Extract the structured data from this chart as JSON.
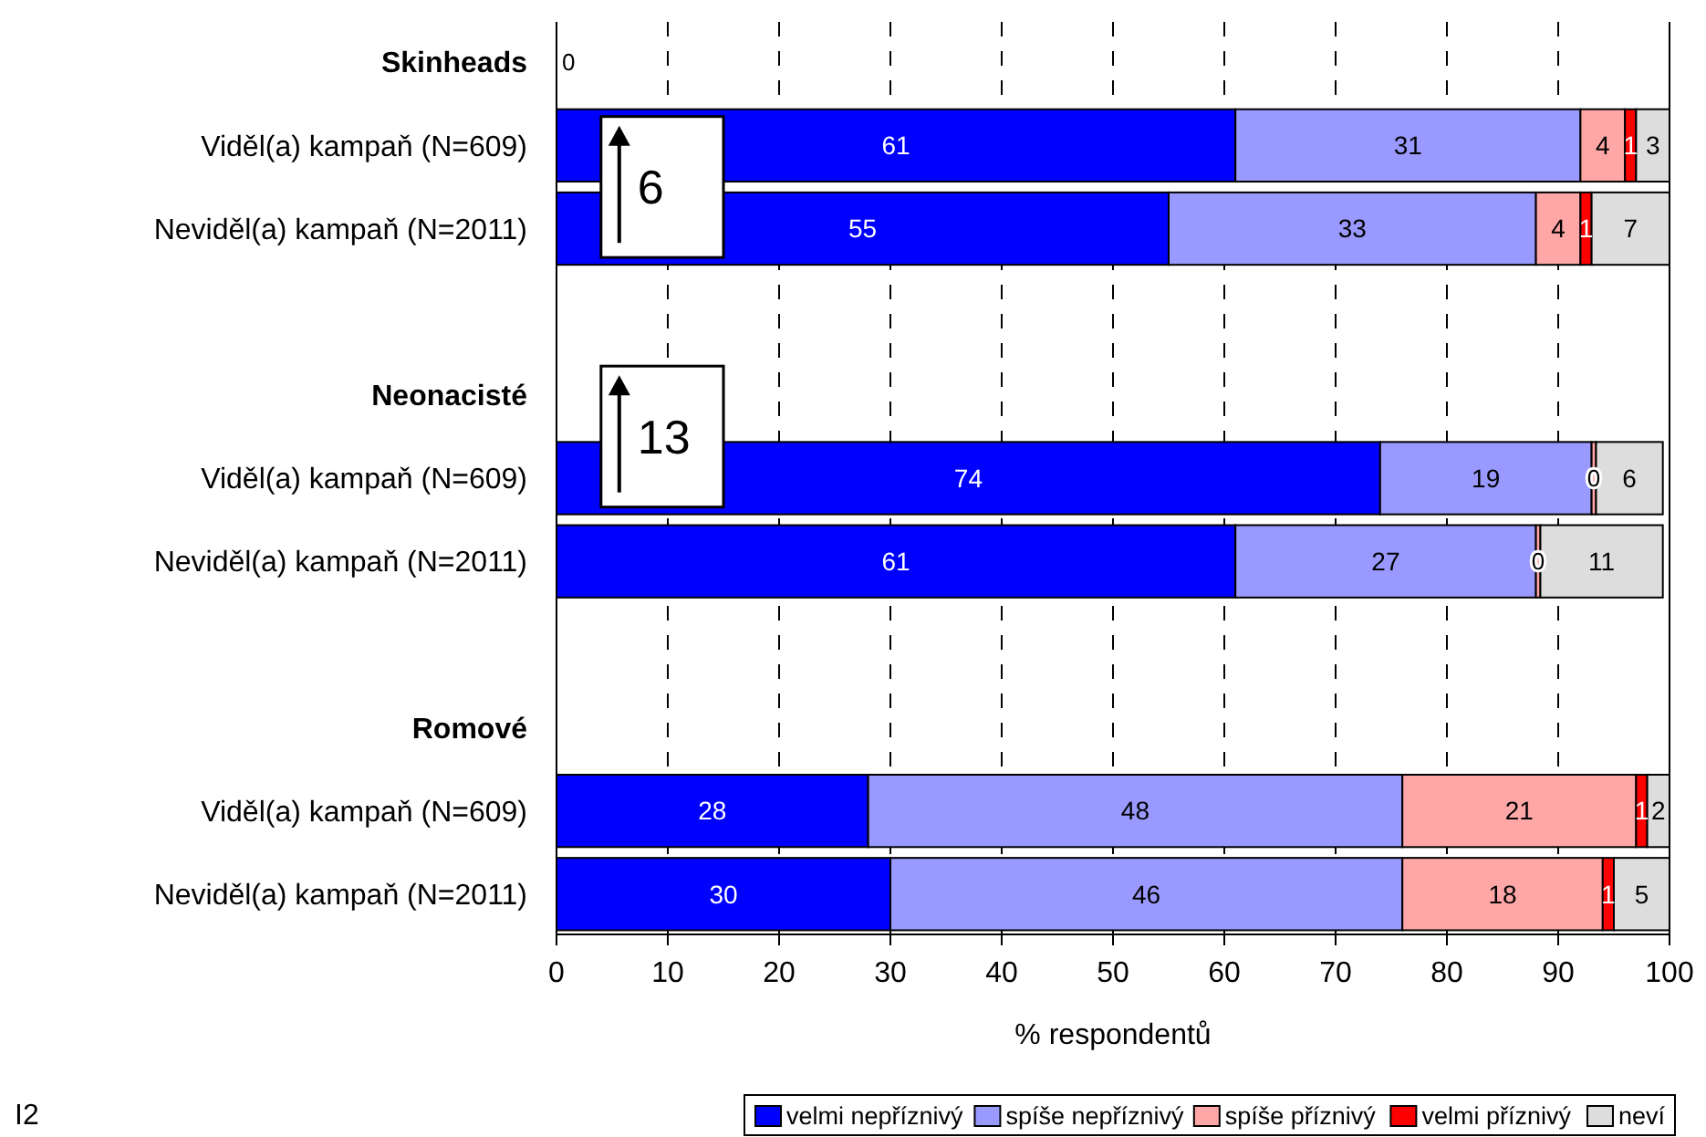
{
  "chart_data": {
    "type": "bar",
    "orientation": "horizontal",
    "stacked": true,
    "categories": [
      "Skinheads",
      "Viděl(a) kampaň (N=609)",
      "Neviděl(a) kampaň (N=2011)",
      null,
      "Neonacisté",
      "Viděl(a) kampaň (N=609)",
      "Neviděl(a) kampaň (N=2011)",
      null,
      "Romové",
      "Viděl(a) kampaň (N=609)",
      "Neviděl(a) kampaň (N=2011)"
    ],
    "series": [
      {
        "name": "velmi nepříznivý",
        "color": "#0000ff",
        "values": [
          null,
          61,
          55,
          null,
          null,
          74,
          61,
          null,
          null,
          28,
          30
        ],
        "value_labels": [
          null,
          "61",
          "55",
          null,
          null,
          "74",
          "61",
          null,
          null,
          "28",
          "30"
        ]
      },
      {
        "name": "spíše nepříznivý",
        "color": "#9999ff",
        "values": [
          null,
          31,
          33,
          null,
          null,
          19,
          27,
          null,
          null,
          48,
          46
        ],
        "value_labels": [
          null,
          "31",
          "33",
          null,
          null,
          "19",
          "27",
          null,
          null,
          "48",
          "46"
        ]
      },
      {
        "name": "spíše příznivý",
        "color": "#ffa6a6",
        "values": [
          null,
          4,
          4,
          null,
          null,
          0.4,
          0.4,
          null,
          null,
          21,
          18
        ],
        "value_labels": [
          null,
          "4",
          "4",
          null,
          null,
          "0",
          "0",
          null,
          null,
          "21",
          "18"
        ]
      },
      {
        "name": "velmi příznivý",
        "color": "#ff0000",
        "values": [
          null,
          1,
          1,
          null,
          null,
          0,
          0,
          null,
          null,
          1,
          1
        ],
        "value_labels": [
          null,
          "1",
          "1",
          null,
          null,
          null,
          null,
          null,
          null,
          "1",
          "1"
        ]
      },
      {
        "name": "neví",
        "color": "#dddddd",
        "values": [
          null,
          3,
          7,
          null,
          null,
          6,
          11,
          null,
          null,
          2,
          5
        ],
        "value_labels": [
          null,
          "3",
          "7",
          null,
          null,
          "6",
          "11",
          null,
          null,
          "2",
          "5"
        ]
      }
    ],
    "xlim": [
      0,
      100
    ],
    "xticks": [
      0,
      10,
      20,
      30,
      40,
      50,
      60,
      70,
      80,
      90,
      100
    ],
    "grid": "x",
    "xlabel": "% respondentů",
    "legend": "bottom",
    "annotations": [
      "6",
      "13",
      "0",
      "I2"
    ]
  }
}
